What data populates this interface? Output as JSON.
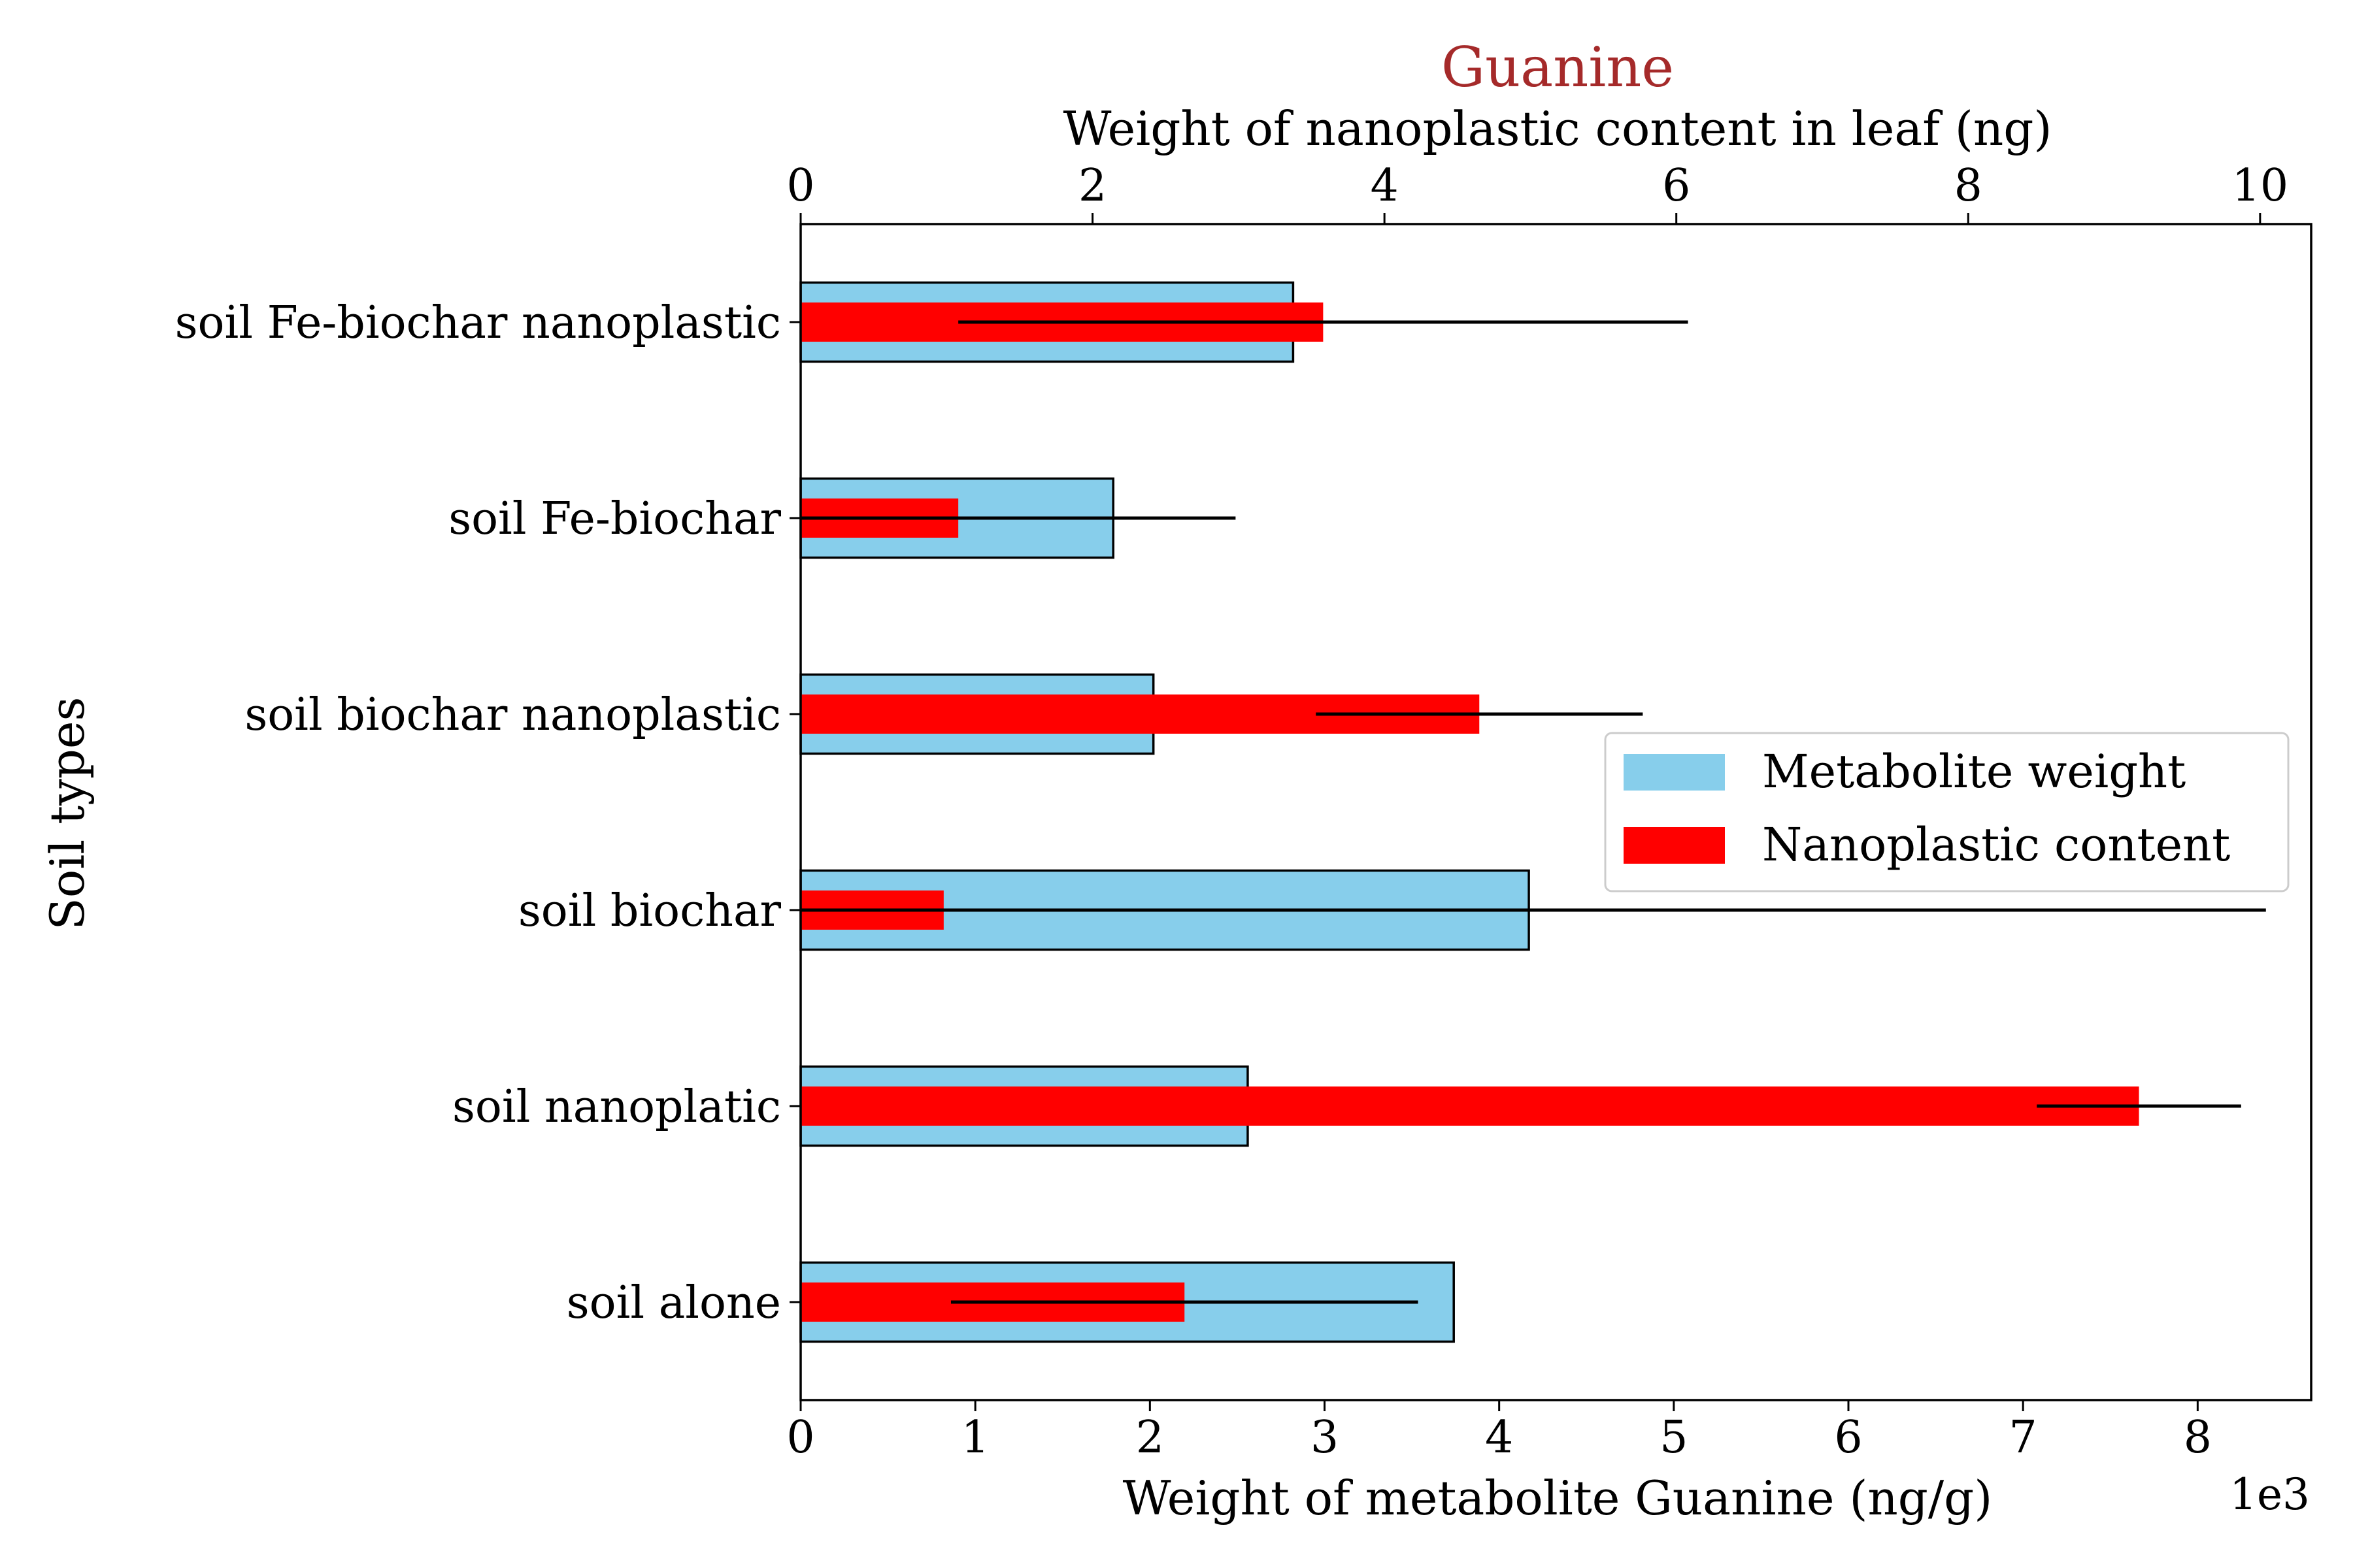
{
  "chart_data": {
    "type": "bar",
    "orientation": "horizontal",
    "title": "Guanine",
    "title_color": "#a52a2a",
    "ylabel": "Soil types",
    "bottom_xlabel": "Weight of metabolite Guanine (ng/g)",
    "bottom_axis_multiplier": "1e3",
    "top_xlabel": "Weight of nanoplastic content in leaf (ng)",
    "categories": [
      "soil alone",
      "soil nanoplatic",
      "soil biochar",
      "soil biochar nanoplastic",
      "soil Fe-biochar",
      "soil Fe-biochar nanoplastic"
    ],
    "bottom_xlim": [
      0,
      8.65
    ],
    "bottom_ticks": [
      0,
      1,
      2,
      3,
      4,
      5,
      6,
      7,
      8
    ],
    "top_xlim": [
      0,
      10.35
    ],
    "top_ticks": [
      0,
      2,
      4,
      6,
      8,
      10
    ],
    "series": [
      {
        "name": "Metabolite weight",
        "axis": "bottom",
        "color": "#87ceeb",
        "edge_color": "#000000",
        "values": [
          3.74,
          2.56,
          4.17,
          2.02,
          1.79,
          2.82
        ]
      },
      {
        "name": "Nanoplastic content",
        "axis": "top",
        "color": "#ff0000",
        "values": [
          2.63,
          9.17,
          0.98,
          4.65,
          1.08,
          3.58
        ],
        "error": [
          1.6,
          0.7,
          9.06,
          1.12,
          1.9,
          2.5
        ]
      }
    ],
    "legend": "center-right",
    "grid": false
  }
}
